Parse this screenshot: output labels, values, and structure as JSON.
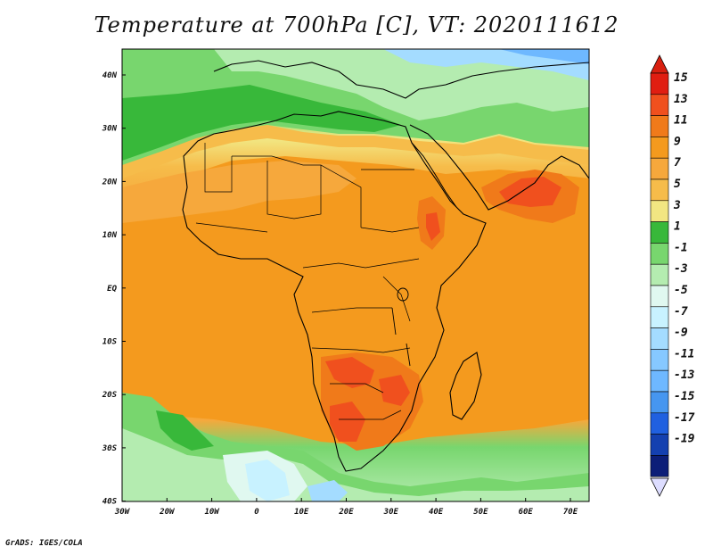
{
  "title": "Temperature at 700hPa [C], VT: 2020111612",
  "credit": "GrADS: IGES/COLA",
  "map": {
    "lat_labels": [
      "40N",
      "30N",
      "20N",
      "10N",
      "EQ",
      "10S",
      "20S",
      "30S",
      "40S"
    ],
    "lon_labels": [
      "30W",
      "20W",
      "10W",
      "0",
      "10E",
      "20E",
      "30E",
      "40E",
      "50E",
      "60E",
      "70E"
    ],
    "colors": {
      "green_dark": "#38b83a",
      "green_mid": "#78d66e",
      "green_light": "#b4ecb0",
      "pale": "#e0f8f0",
      "cyan": "#c8f2ff",
      "blue_light": "#a4dcff",
      "blue_mid": "#6eb8ff",
      "blue_dark": "#2060e0",
      "yellow_orange": "#f6bc4a",
      "orange_light": "#f6a83c",
      "orange": "#f49a1e",
      "orange_dark": "#f07a1a",
      "red_orange": "#f0501e",
      "coast": "#000000"
    }
  },
  "colorbar": {
    "labels": [
      "15",
      "13",
      "11",
      "9",
      "7",
      "5",
      "3",
      "1",
      "-1",
      "-3",
      "-5",
      "-7",
      "-9",
      "-11",
      "-13",
      "-15",
      "-17",
      "-19"
    ],
    "colors": [
      "#e01e12",
      "#f0501e",
      "#f07a1a",
      "#f49a1e",
      "#f6a83c",
      "#f6bc4a",
      "#f2e682",
      "#38b83a",
      "#78d66e",
      "#b4ecb0",
      "#e0f8f0",
      "#c8f2ff",
      "#a4dcff",
      "#86c8ff",
      "#6eb8ff",
      "#4696f0",
      "#2060e0",
      "#1440b0",
      "#0c1e78"
    ],
    "tip_top": "#d82010",
    "tip_bottom": "#ddddff"
  }
}
